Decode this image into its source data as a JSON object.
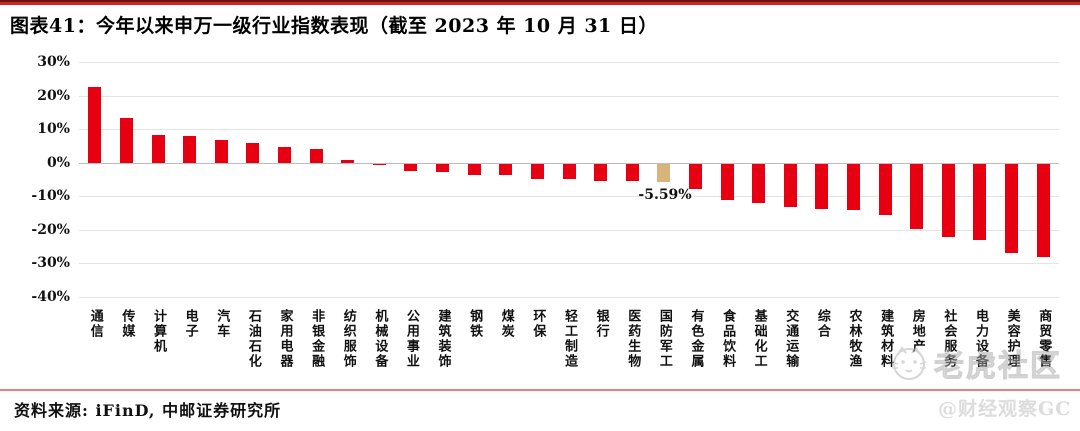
{
  "header": {
    "title": "图表41：今年以来申万一级行业指数表现（截至 2023 年 10 月 31 日）"
  },
  "chart_data": {
    "type": "bar",
    "title": "今年以来申万一级行业指数表现（截至 2023 年 10 月 31 日）",
    "categories": [
      "通信",
      "传媒",
      "计算机",
      "电子",
      "汽车",
      "石油石化",
      "家用电器",
      "非银金融",
      "纺织服饰",
      "机械设备",
      "公用事业",
      "建筑装饰",
      "钢铁",
      "煤炭",
      "环保",
      "轻工制造",
      "银行",
      "医药生物",
      "国防军工",
      "有色金属",
      "食品饮料",
      "基础化工",
      "交通运输",
      "综合",
      "农林牧渔",
      "建筑材料",
      "房地产",
      "社会服务",
      "电力设备",
      "美容护理",
      "商贸零售"
    ],
    "values": [
      22.5,
      13.2,
      8.4,
      7.9,
      6.9,
      6.0,
      4.7,
      4.1,
      0.8,
      -0.1,
      -2.1,
      -2.5,
      -3.3,
      -3.5,
      -4.5,
      -4.7,
      -5.1,
      -5.3,
      -5.59,
      -7.5,
      -10.8,
      -11.8,
      -13.0,
      -13.5,
      -13.8,
      -15.3,
      -19.5,
      -21.8,
      -22.7,
      -26.5,
      -27.8
    ],
    "unit": "%",
    "bar_color": "#e60012",
    "highlight": {
      "category": "国防军工",
      "index": 18,
      "color": "#d9b37c",
      "value_label": "-5.59%"
    },
    "y_ticks": [
      30,
      20,
      10,
      0,
      -10,
      -20,
      -30,
      -40
    ],
    "y_tick_labels": [
      "30%",
      "20%",
      "10%",
      "0%",
      "-10%",
      "-20%",
      "-30%",
      "-40%"
    ],
    "ylim": [
      -40,
      30
    ],
    "grid": true,
    "legend": "none",
    "xlabel": "",
    "ylabel": ""
  },
  "footer": {
    "source_label": "资料来源: iFinD, 中邮证券研究所"
  },
  "watermarks": {
    "community": "老虎社区",
    "account": "@财经观察GC",
    "tiger_logo": "tiger-face"
  },
  "colors": {
    "bar_red": "#e60012",
    "bar_tan": "#d9b37c",
    "top_line_dark": "#6e1212",
    "top_line_red": "#d22525",
    "divider_salmon": "#e2837f",
    "gridline": "#e4e4e4"
  }
}
